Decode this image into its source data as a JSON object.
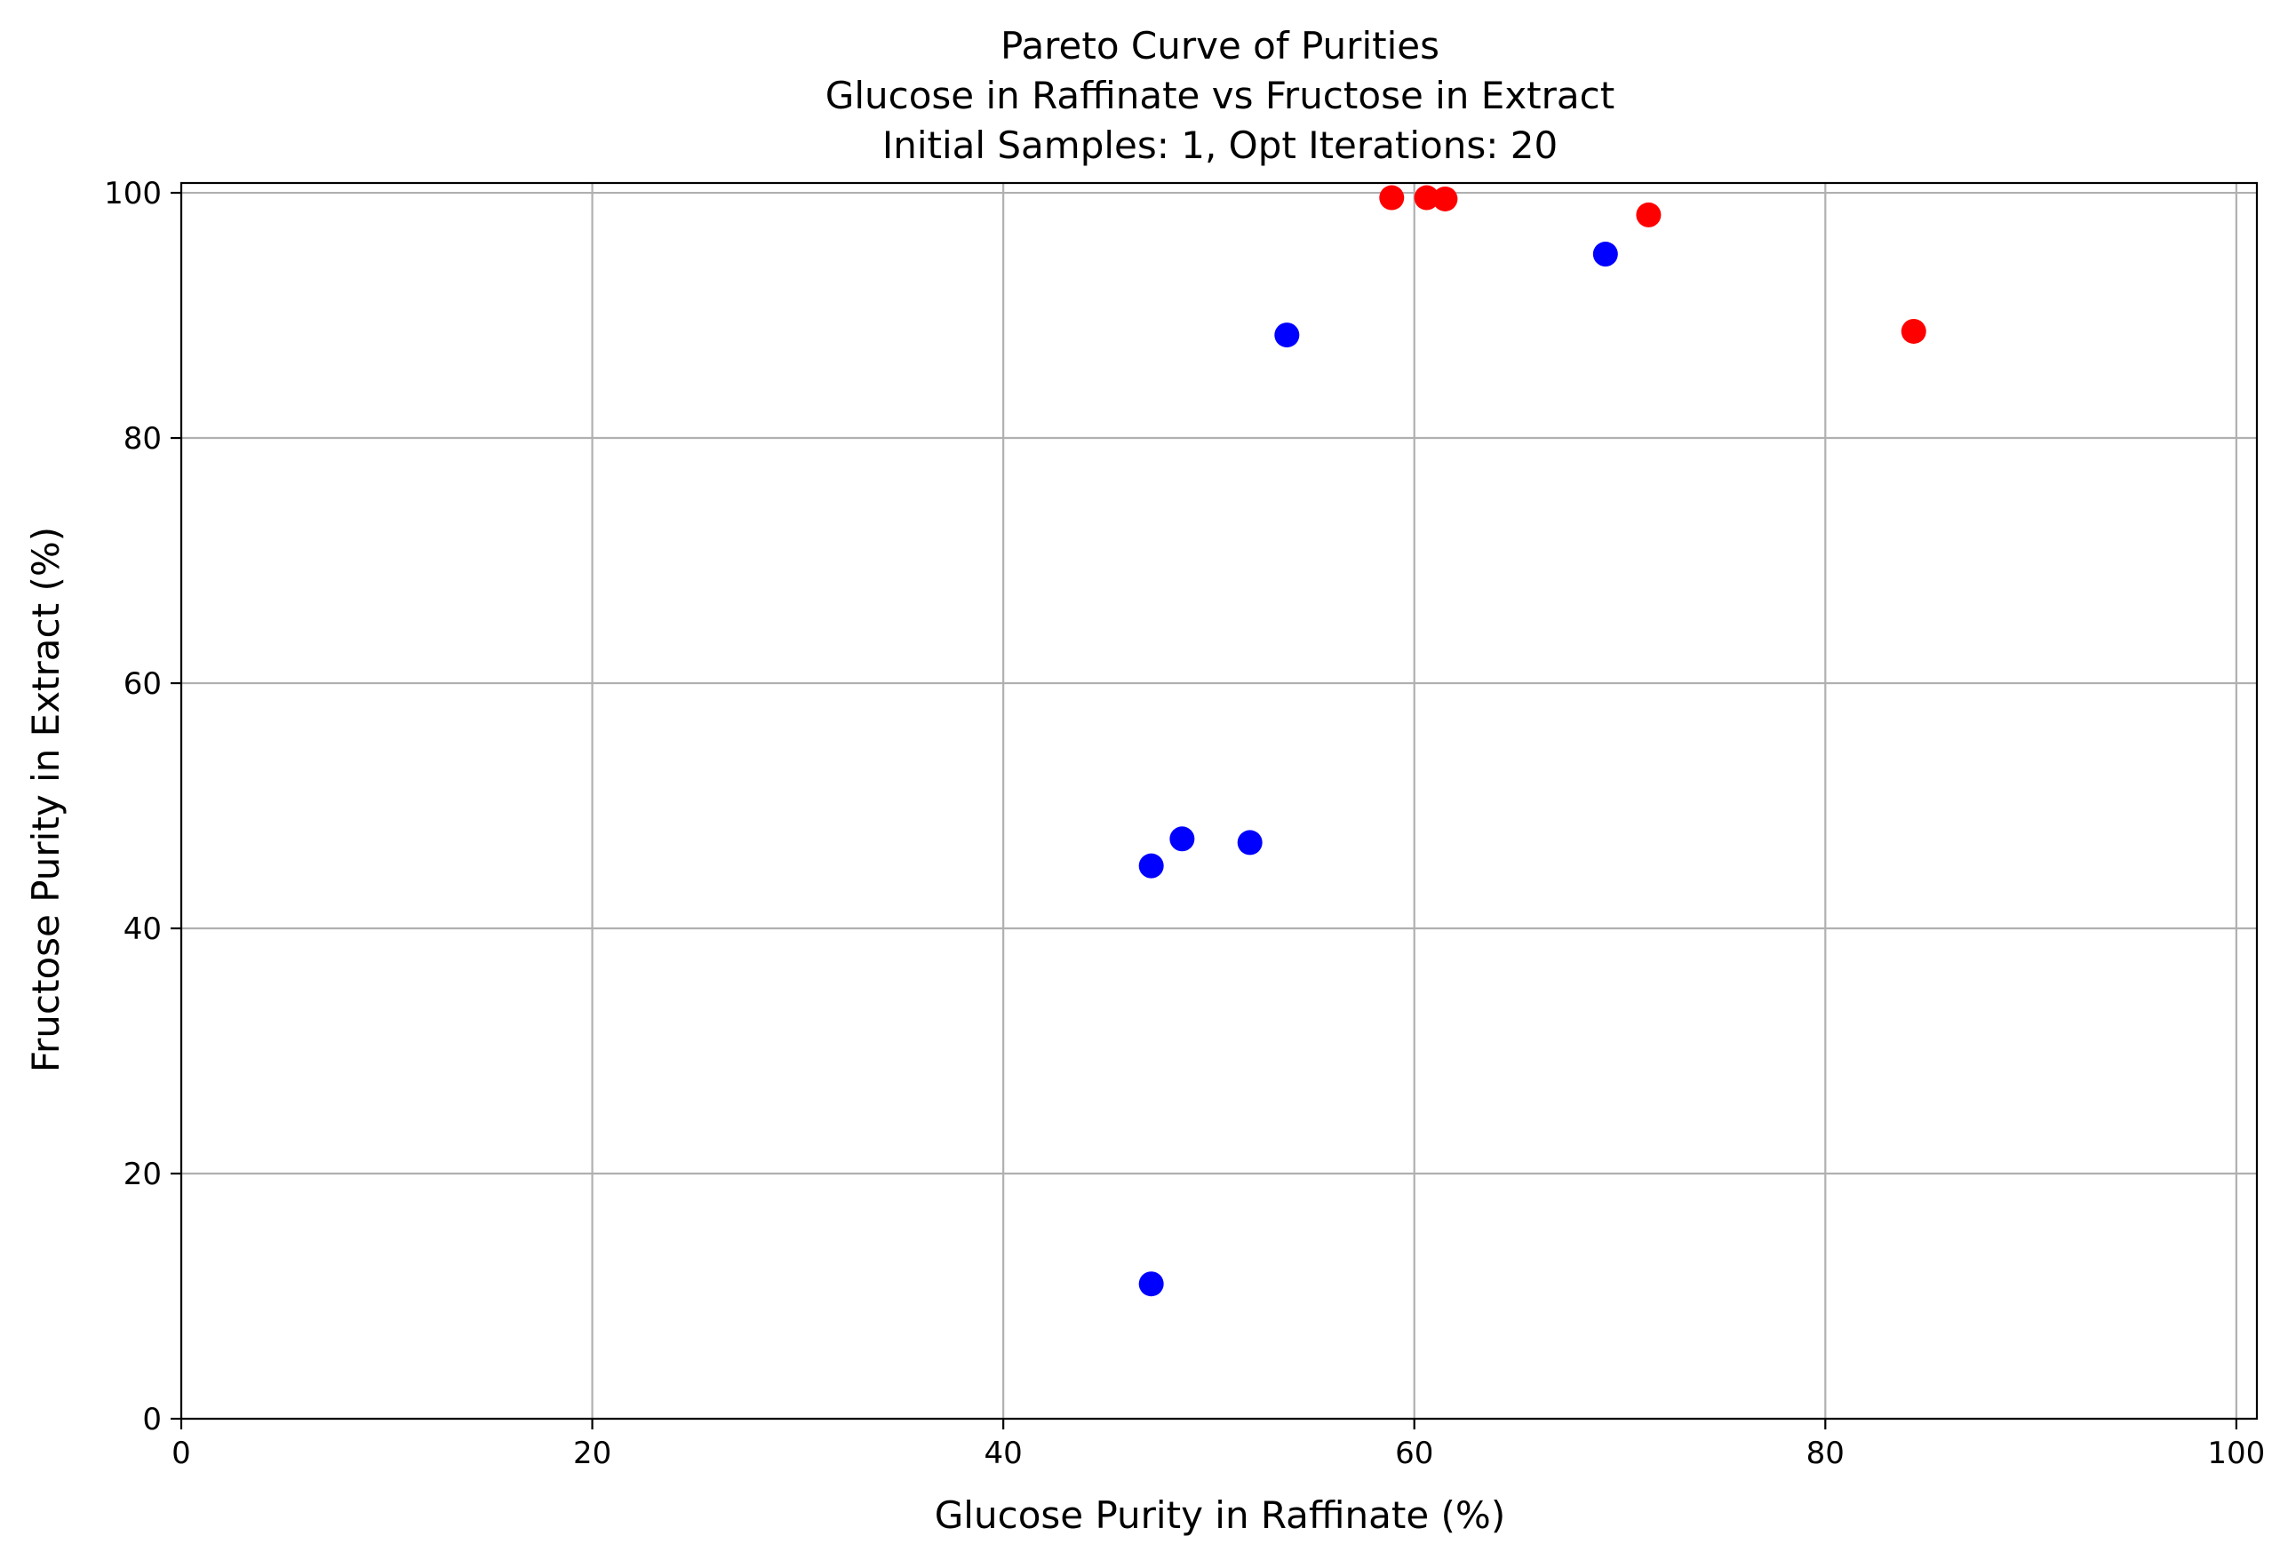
{
  "chart_data": {
    "type": "scatter",
    "title": [
      "Pareto Curve of Purities",
      "Glucose in Raffinate vs Fructose in Extract",
      "Initial Samples: 1, Opt Iterations: 20"
    ],
    "xlabel": "Glucose Purity in Raffinate (%)",
    "ylabel": "Fructose Purity in Extract (%)",
    "xlim": [
      0,
      101
    ],
    "ylim": [
      0,
      100.8
    ],
    "xticks": [
      0,
      20,
      40,
      60,
      80,
      100
    ],
    "yticks": [
      0,
      20,
      40,
      60,
      80,
      100
    ],
    "grid": true,
    "series": [
      {
        "color": "#0000ff",
        "points": [
          {
            "x": 47.2,
            "y": 11.0
          },
          {
            "x": 47.2,
            "y": 45.1
          },
          {
            "x": 48.7,
            "y": 47.3
          },
          {
            "x": 52.0,
            "y": 47.0
          },
          {
            "x": 53.8,
            "y": 88.4
          },
          {
            "x": 69.3,
            "y": 95.0
          }
        ]
      },
      {
        "color": "#ff0000",
        "points": [
          {
            "x": 58.9,
            "y": 99.6
          },
          {
            "x": 60.6,
            "y": 99.6
          },
          {
            "x": 61.5,
            "y": 99.5
          },
          {
            "x": 71.4,
            "y": 98.2
          },
          {
            "x": 84.3,
            "y": 88.7
          }
        ]
      }
    ]
  }
}
